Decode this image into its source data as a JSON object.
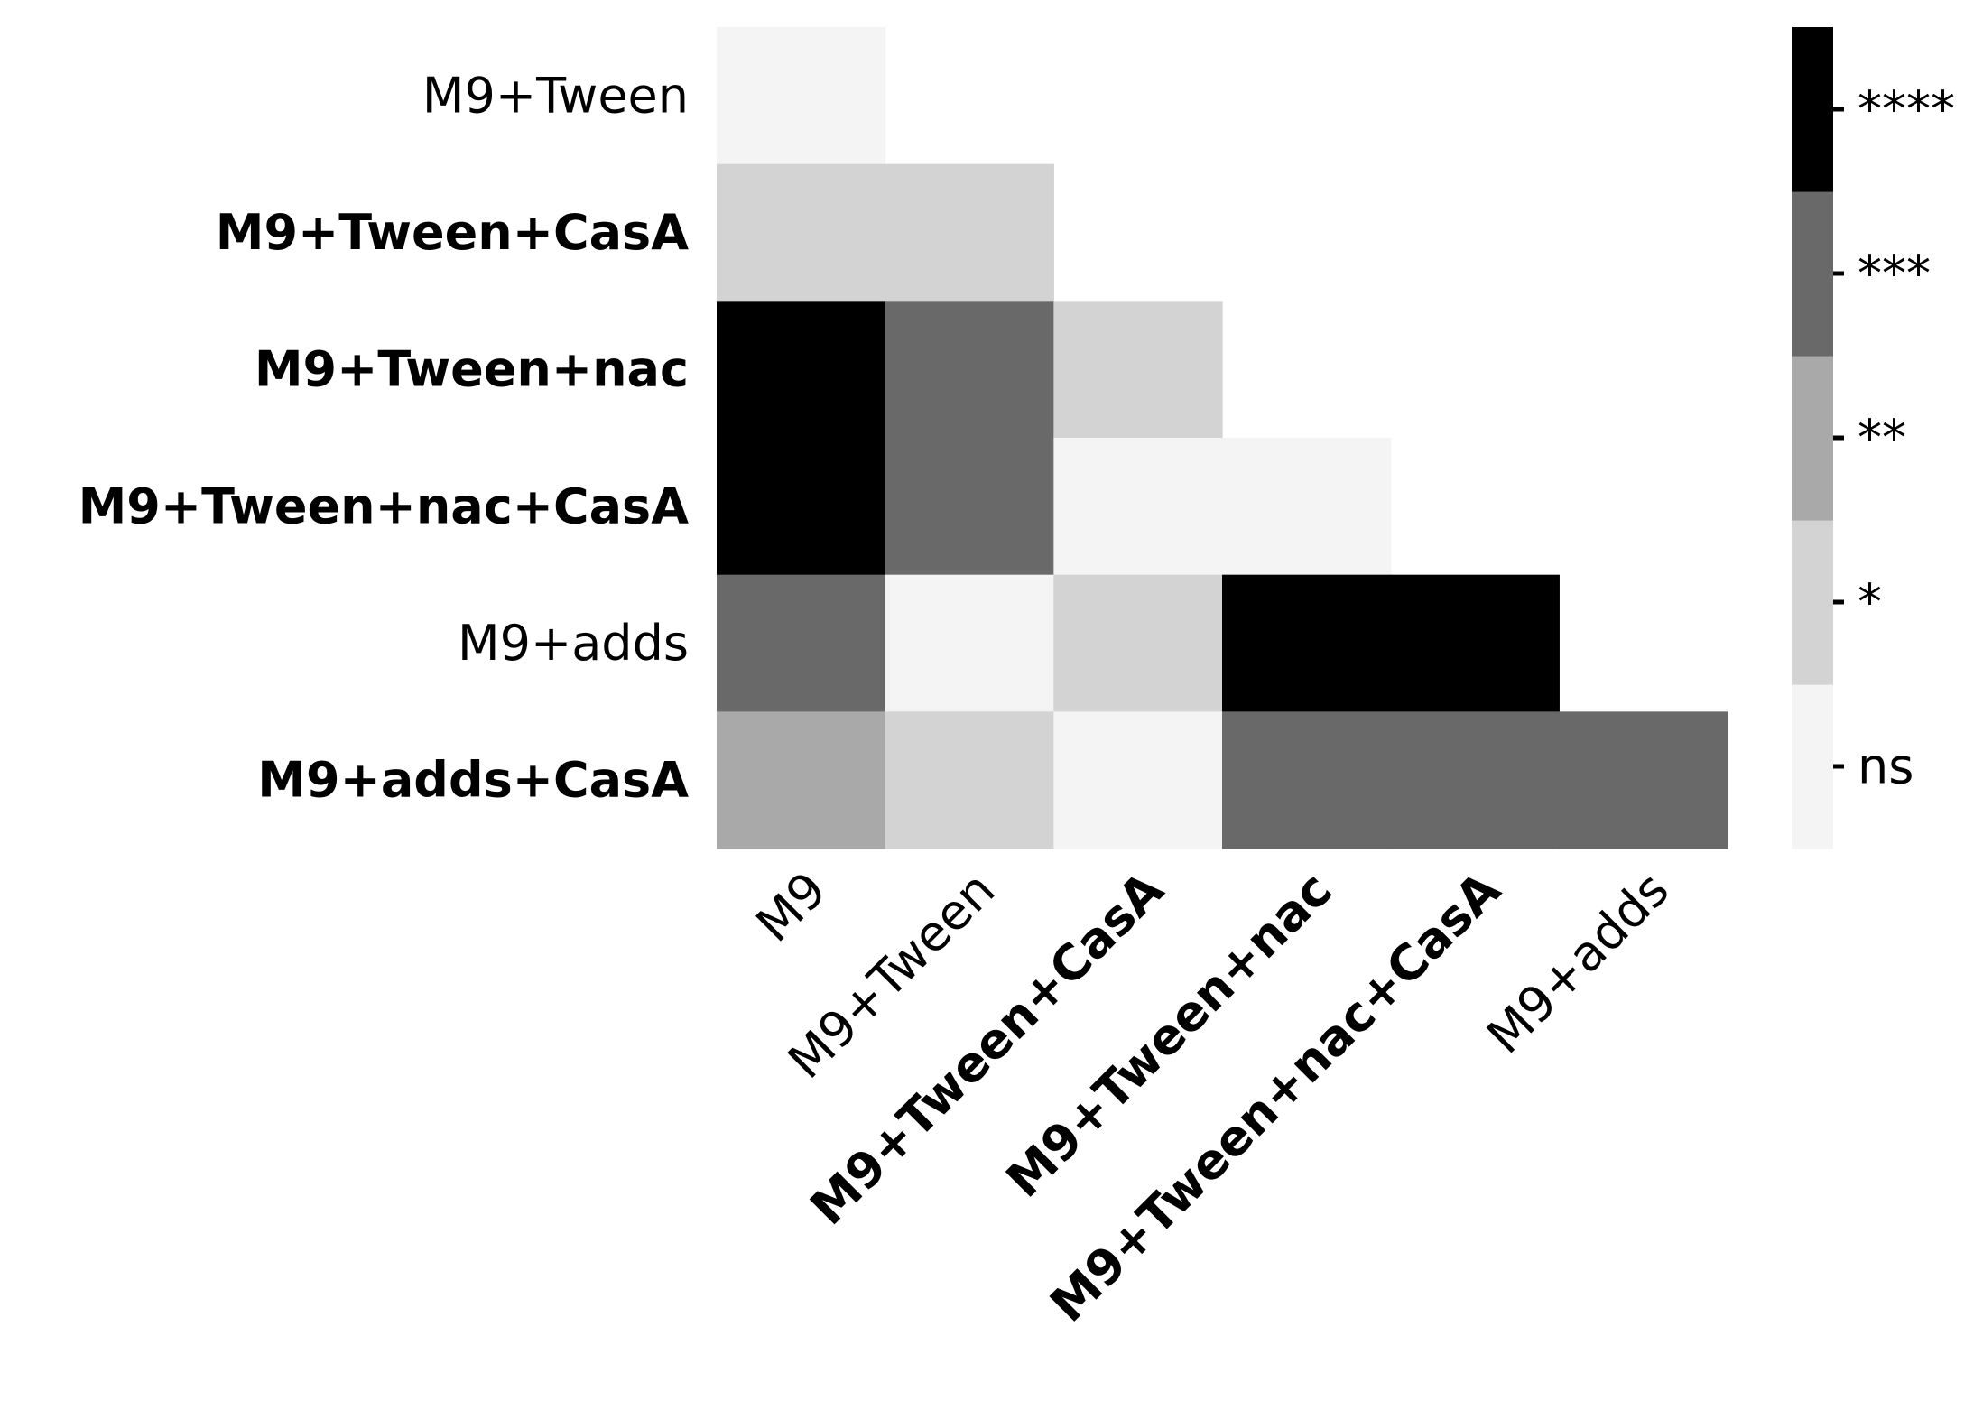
{
  "chart_data": {
    "type": "heatmap",
    "title": "",
    "xlabel": "",
    "ylabel": "",
    "rows": [
      {
        "label": "M9+Tween",
        "bold": false
      },
      {
        "label": "M9+Tween+CasA",
        "bold": true
      },
      {
        "label": "M9+Tween+nac",
        "bold": true
      },
      {
        "label": "M9+Tween+nac+CasA",
        "bold": true
      },
      {
        "label": "M9+adds",
        "bold": false
      },
      {
        "label": "M9+adds+CasA",
        "bold": true
      }
    ],
    "columns": [
      {
        "label": "M9",
        "bold": false
      },
      {
        "label": "M9+Tween",
        "bold": false
      },
      {
        "label": "M9+Tween+CasA",
        "bold": true
      },
      {
        "label": "M9+Tween+nac",
        "bold": true
      },
      {
        "label": "M9+Tween+nac+CasA",
        "bold": true
      },
      {
        "label": "M9+adds",
        "bold": false
      }
    ],
    "significance_levels": [
      "ns",
      "*",
      "**",
      "***",
      "****"
    ],
    "level_colors": [
      "#f4f4f4",
      "#d3d3d3",
      "#a9a9a9",
      "#696969",
      "#000000"
    ],
    "matrix": [
      [
        0,
        null,
        null,
        null,
        null,
        null
      ],
      [
        1,
        1,
        null,
        null,
        null,
        null
      ],
      [
        4,
        3,
        1,
        null,
        null,
        null
      ],
      [
        4,
        3,
        0,
        0,
        null,
        null
      ],
      [
        3,
        0,
        1,
        4,
        4,
        null
      ],
      [
        2,
        1,
        0,
        3,
        3,
        3
      ]
    ],
    "colorbar": {
      "labels": [
        "ns",
        "*",
        "**",
        "***",
        "****"
      ],
      "placement": "right"
    },
    "grid": false
  }
}
